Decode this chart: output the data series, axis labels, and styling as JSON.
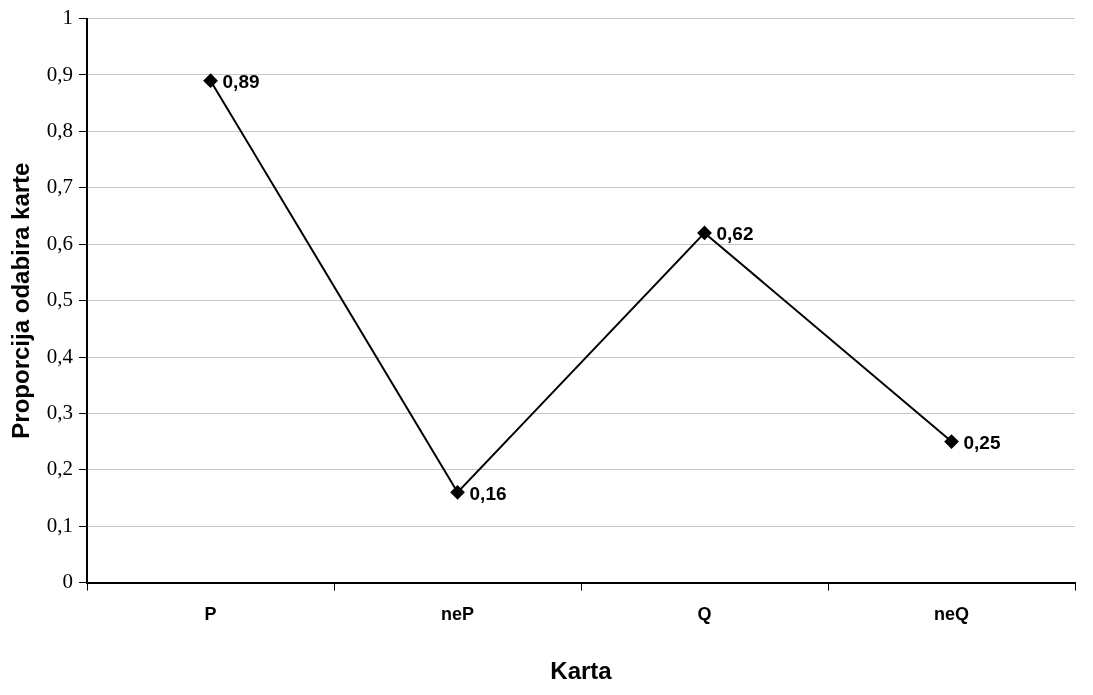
{
  "chart_data": {
    "type": "line",
    "xlabel": "Karta",
    "ylabel": "Proporcija odabira karte",
    "categories": [
      "P",
      "neP",
      "Q",
      "neQ"
    ],
    "series": [
      {
        "color": "#000000",
        "values": [
          0.89,
          0.16,
          0.62,
          0.25
        ],
        "value_labels": [
          "0,89",
          "0,16",
          "0,62",
          "0,25"
        ]
      }
    ],
    "ylim": [
      0,
      1
    ],
    "yticks": [
      0,
      {
        "value": 0.1,
        "label": "0,1"
      },
      {
        "value": 0.2,
        "label": "0,2"
      },
      {
        "value": 0.3,
        "label": "0,3"
      },
      {
        "value": 0.4,
        "label": "0,4"
      },
      {
        "value": 0.5,
        "label": "0,5"
      },
      {
        "value": 0.6,
        "label": "0,6"
      },
      {
        "value": 0.7,
        "label": "0,7"
      },
      {
        "value": 0.8,
        "label": "0,8"
      },
      {
        "value": 0.9,
        "label": "0,9"
      },
      1
    ],
    "grid": "y",
    "legend": false,
    "marker": "diamond",
    "line_style": "solid"
  }
}
